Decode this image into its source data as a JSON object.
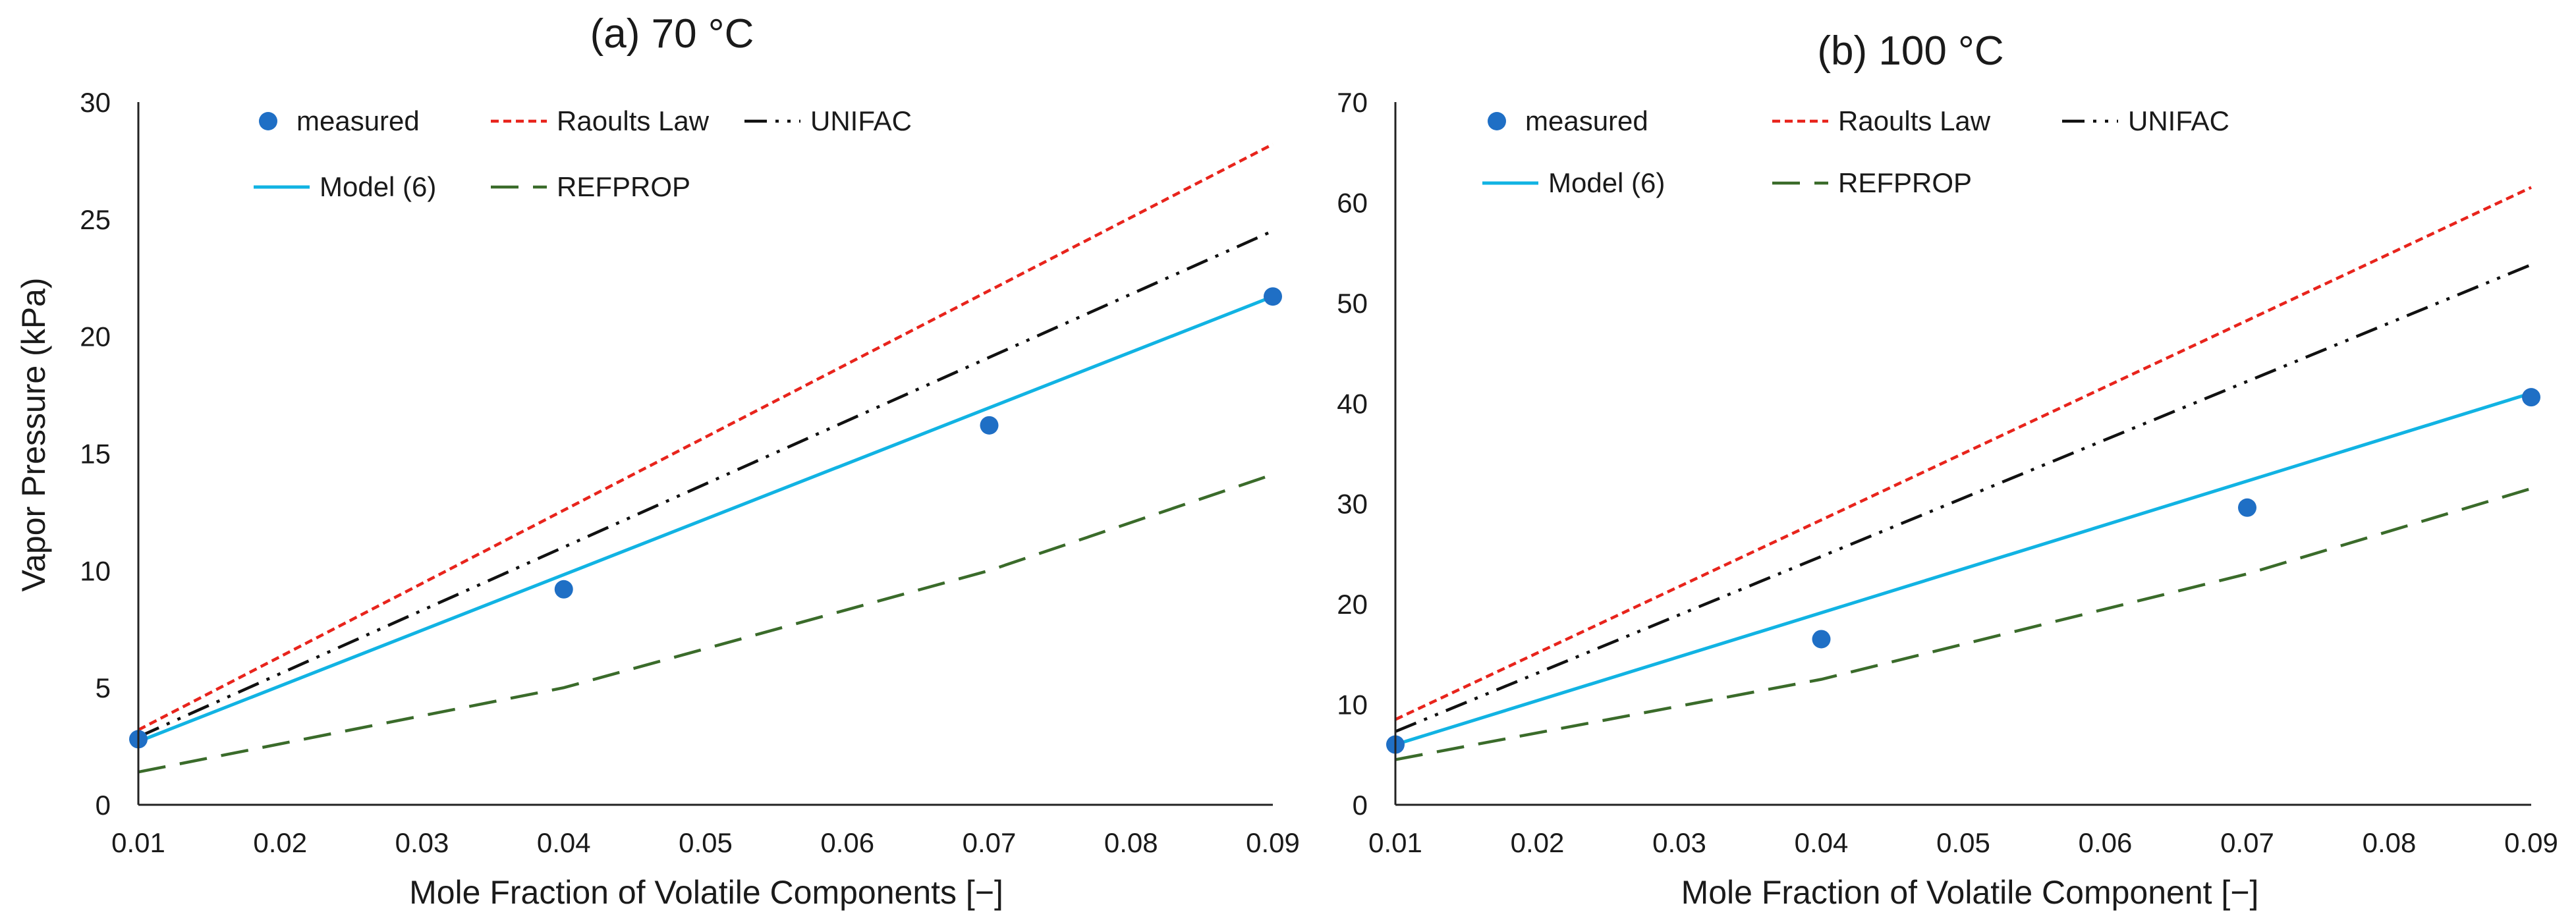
{
  "chart_data": [
    {
      "type": "line",
      "title": "(a) 70 °C",
      "xlabel": "Mole Fraction of Volatile Components [−]",
      "ylabel": "Vapor Pressure (kPa)",
      "xlim": [
        0.01,
        0.09
      ],
      "ylim": [
        0,
        30
      ],
      "xticks": [
        "0.01",
        "0.02",
        "0.03",
        "0.04",
        "0.05",
        "0.06",
        "0.07",
        "0.08",
        "0.09"
      ],
      "yticks": [
        "0",
        "5",
        "10",
        "15",
        "20",
        "25",
        "30"
      ],
      "grid": false,
      "legend_position": "top-left",
      "series": [
        {
          "name": "measured",
          "kind": "scatter",
          "color": "#1f6fc5",
          "x": [
            0.01,
            0.04,
            0.07,
            0.09
          ],
          "y": [
            2.8,
            9.2,
            16.2,
            21.7
          ]
        },
        {
          "name": "Raoults Law",
          "kind": "line",
          "style": "dotted",
          "color": "#e8241c",
          "x": [
            0.01,
            0.09
          ],
          "y": [
            3.2,
            28.2
          ]
        },
        {
          "name": "UNIFAC",
          "kind": "line",
          "style": "dash-dot-dot",
          "color": "#111111",
          "x": [
            0.01,
            0.09
          ],
          "y": [
            2.9,
            24.5
          ]
        },
        {
          "name": "Model (6)",
          "kind": "line",
          "style": "solid",
          "color": "#11b3e3",
          "x": [
            0.01,
            0.09
          ],
          "y": [
            2.7,
            21.7
          ]
        },
        {
          "name": "REFPROP",
          "kind": "line",
          "style": "dashed",
          "color": "#3a6b2a",
          "x": [
            0.01,
            0.04,
            0.07,
            0.09
          ],
          "y": [
            1.4,
            5.0,
            10.0,
            14.1
          ]
        }
      ]
    },
    {
      "type": "line",
      "title": "(b) 100 °C",
      "xlabel": "Mole Fraction of Volatile Component [−]",
      "ylabel": "",
      "xlim": [
        0.01,
        0.09
      ],
      "ylim": [
        0,
        70
      ],
      "xticks": [
        "0.01",
        "0.02",
        "0.03",
        "0.04",
        "0.05",
        "0.06",
        "0.07",
        "0.08",
        "0.09"
      ],
      "yticks": [
        "0",
        "10",
        "20",
        "30",
        "40",
        "50",
        "60",
        "70"
      ],
      "grid": false,
      "legend_position": "top-left",
      "series": [
        {
          "name": "measured",
          "kind": "scatter",
          "color": "#1f6fc5",
          "x": [
            0.01,
            0.04,
            0.07,
            0.09
          ],
          "y": [
            6.0,
            16.5,
            29.6,
            40.6
          ]
        },
        {
          "name": "Raoults Law",
          "kind": "line",
          "style": "dotted",
          "color": "#e8241c",
          "x": [
            0.01,
            0.09
          ],
          "y": [
            8.5,
            61.5
          ]
        },
        {
          "name": "UNIFAC",
          "kind": "line",
          "style": "dash-dot-dot",
          "color": "#111111",
          "x": [
            0.01,
            0.09
          ],
          "y": [
            7.3,
            53.8
          ]
        },
        {
          "name": "Model (6)",
          "kind": "line",
          "style": "solid",
          "color": "#11b3e3",
          "x": [
            0.01,
            0.09
          ],
          "y": [
            6.0,
            41.0
          ]
        },
        {
          "name": "REFPROP",
          "kind": "line",
          "style": "dashed",
          "color": "#3a6b2a",
          "x": [
            0.01,
            0.04,
            0.07,
            0.09
          ],
          "y": [
            4.5,
            12.5,
            23.0,
            31.5
          ]
        }
      ]
    }
  ]
}
